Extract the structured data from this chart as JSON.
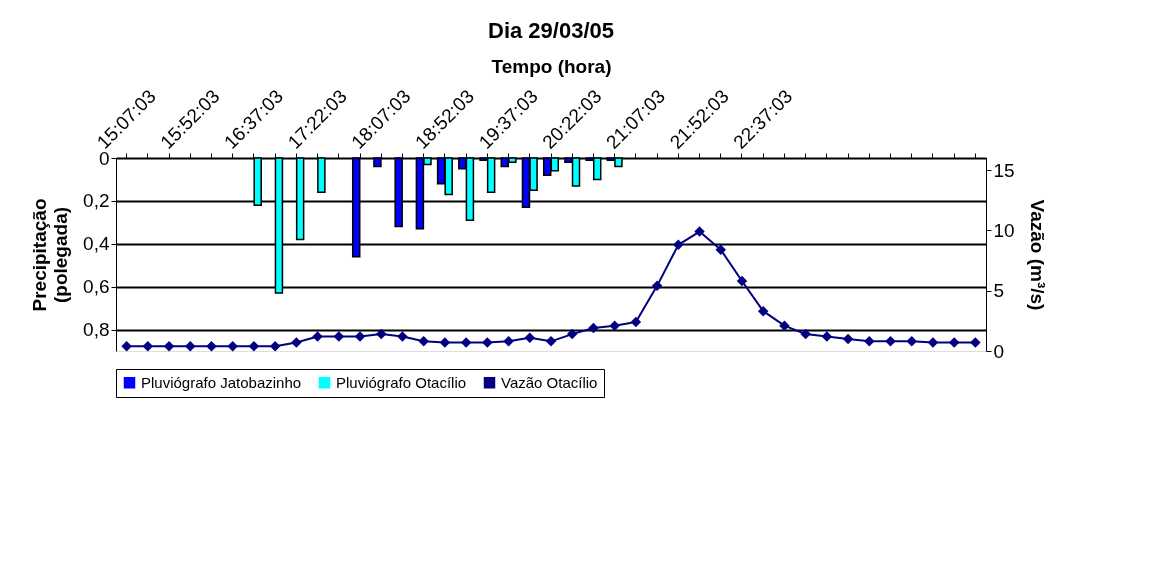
{
  "chart_data": {
    "type": "bar",
    "title": "Dia 29/03/05",
    "xlabel": "Tempo (hora)",
    "ylabel": "Precipitação (polegada)",
    "y2label": "Vazão (m³/s)",
    "categories": [
      "15:07:03",
      null,
      null,
      "15:52:03",
      null,
      null,
      "16:37:03",
      null,
      null,
      "17:22:03",
      null,
      null,
      "18:07:03",
      null,
      null,
      "18:52:03",
      null,
      null,
      "19:37:03",
      null,
      null,
      "20:22:03",
      null,
      null,
      "21:07:03",
      null,
      null,
      "21:52:03",
      null,
      null,
      "22:37:03",
      null,
      null,
      null,
      null,
      null,
      null,
      null,
      null,
      null,
      null
    ],
    "series": [
      {
        "name": "Pluviógrafo Jatobazinho",
        "color": "#0000ff",
        "values": [
          null,
          null,
          null,
          null,
          null,
          null,
          null,
          null,
          null,
          null,
          null,
          0.46,
          0.04,
          0.32,
          0.33,
          0.12,
          0.05,
          0.01,
          0.04,
          0.23,
          0.08,
          0.02,
          0.01,
          0.01,
          null,
          null,
          null,
          null,
          null,
          null,
          null,
          null,
          null,
          null,
          null,
          null,
          null,
          null,
          null,
          null,
          null
        ]
      },
      {
        "name": "Pluviógrafo Otacílio",
        "color": "#00ffff",
        "values": [
          null,
          null,
          null,
          null,
          null,
          null,
          0.22,
          0.63,
          0.38,
          0.16,
          null,
          null,
          null,
          null,
          0.03,
          0.17,
          0.29,
          0.16,
          0.02,
          0.15,
          0.06,
          0.13,
          0.1,
          0.04,
          null,
          null,
          null,
          null,
          null,
          null,
          null,
          null,
          null,
          null,
          null,
          null,
          null,
          null,
          null,
          null,
          null
        ]
      },
      {
        "name": "Vazão Otacílio",
        "type": "line",
        "axis": "y2",
        "color": "#000080",
        "marker": "diamond",
        "values": [
          0.4,
          0.4,
          0.4,
          0.4,
          0.4,
          0.4,
          0.4,
          0.4,
          0.7,
          1.2,
          1.2,
          1.2,
          1.4,
          1.2,
          0.8,
          0.7,
          0.7,
          0.7,
          0.8,
          1.1,
          0.8,
          1.4,
          1.9,
          2.1,
          2.4,
          5.4,
          8.8,
          9.9,
          8.4,
          5.8,
          3.3,
          2.1,
          1.4,
          1.2,
          1.0,
          0.8,
          0.8,
          0.8,
          0.7,
          0.7,
          0.7
        ]
      }
    ],
    "ylim": [
      0.9,
      0
    ],
    "yticks": [
      0,
      {
        "value": 0.2,
        "label": "0,2"
      },
      {
        "value": 0.4,
        "label": "0,4"
      },
      {
        "value": 0.6,
        "label": "0,6"
      },
      {
        "value": 0.8,
        "label": "0,8"
      }
    ],
    "y2lim": [
      0,
      16
    ],
    "y2ticks": [
      0,
      5,
      10,
      15
    ],
    "grid": "y",
    "legend": "bottom"
  }
}
